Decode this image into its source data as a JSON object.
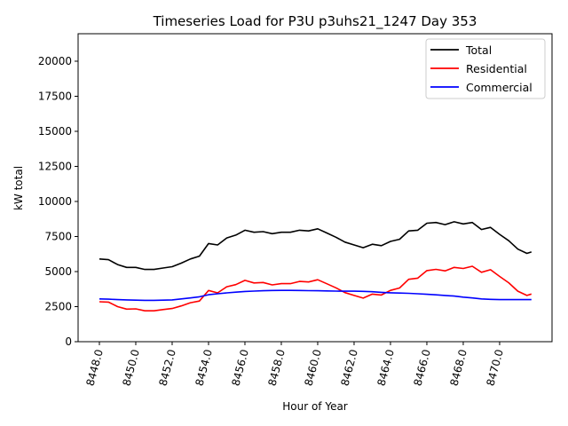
{
  "chart_data": {
    "type": "line",
    "title": "Timeseries Load for P3U p3uhs21_1247  Day 353",
    "xlabel": "Hour of Year",
    "ylabel": "kW total",
    "xlim": [
      8446.83,
      8472.88
    ],
    "ylim": [
      0,
      21960
    ],
    "xticks": [
      8448,
      8450,
      8452,
      8454,
      8456,
      8458,
      8460,
      8462,
      8464,
      8466,
      8468,
      8470
    ],
    "xtick_labels": [
      "8448.0",
      "8450.0",
      "8452.0",
      "8454.0",
      "8456.0",
      "8458.0",
      "8460.0",
      "8462.0",
      "8464.0",
      "8466.0",
      "8468.0",
      "8470.0"
    ],
    "yticks": [
      0,
      2500,
      5000,
      7500,
      10000,
      12500,
      15000,
      17500,
      20000
    ],
    "ytick_labels": [
      "0",
      "2500",
      "5000",
      "7500",
      "10000",
      "12500",
      "15000",
      "17500",
      "20000"
    ],
    "grid": false,
    "legend_position": "top-right",
    "x": [
      8448,
      8448.5,
      8449,
      8449.5,
      8450,
      8450.5,
      8451,
      8451.5,
      8452,
      8452.5,
      8453,
      8453.5,
      8454,
      8454.5,
      8455,
      8455.5,
      8456,
      8456.5,
      8457,
      8457.5,
      8458,
      8458.5,
      8459,
      8459.5,
      8460,
      8460.5,
      8461,
      8461.5,
      8462,
      8462.5,
      8463,
      8463.5,
      8464,
      8464.5,
      8465,
      8465.5,
      8466,
      8466.5,
      8467,
      8467.5,
      8468,
      8468.5,
      8469,
      8469.5,
      8470,
      8470.5,
      8471,
      8471.5,
      8471.75
    ],
    "series": [
      {
        "name": "Total",
        "color": "#000000",
        "values": [
          5900,
          5850,
          5500,
          5300,
          5300,
          5150,
          5150,
          5250,
          5350,
          5600,
          5900,
          6100,
          7000,
          6900,
          7400,
          7600,
          7950,
          7800,
          7850,
          7700,
          7800,
          7800,
          7950,
          7900,
          8050,
          7750,
          7450,
          7100,
          6900,
          6700,
          6950,
          6850,
          7150,
          7300,
          7900,
          7950,
          8450,
          8500,
          8350,
          8550,
          8400,
          8500,
          8000,
          8150,
          7650,
          7200,
          6600,
          6300,
          6400
        ]
      },
      {
        "name": "Residential",
        "color": "#ff0000",
        "values": [
          2850,
          2820,
          2500,
          2320,
          2340,
          2200,
          2200,
          2290,
          2370,
          2550,
          2780,
          2900,
          3650,
          3480,
          3920,
          4070,
          4370,
          4190,
          4220,
          4050,
          4140,
          4140,
          4300,
          4260,
          4420,
          4130,
          3840,
          3500,
          3300,
          3110,
          3390,
          3330,
          3660,
          3830,
          4450,
          4530,
          5070,
          5160,
          5050,
          5300,
          5220,
          5380,
          4950,
          5130,
          4650,
          4200,
          3600,
          3300,
          3400
        ]
      },
      {
        "name": "Commercial",
        "color": "#0000ff",
        "values": [
          3050,
          3030,
          3000,
          2980,
          2960,
          2950,
          2950,
          2960,
          2980,
          3050,
          3120,
          3200,
          3350,
          3420,
          3480,
          3530,
          3580,
          3610,
          3630,
          3650,
          3660,
          3660,
          3650,
          3640,
          3630,
          3620,
          3610,
          3600,
          3600,
          3590,
          3560,
          3520,
          3490,
          3470,
          3450,
          3420,
          3380,
          3340,
          3300,
          3250,
          3180,
          3120,
          3050,
          3020,
          3000,
          3000,
          3000,
          3000,
          3000
        ]
      }
    ]
  }
}
